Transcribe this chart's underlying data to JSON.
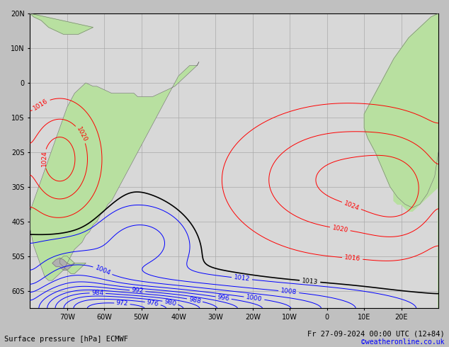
{
  "title_left": "Surface pressure [hPa] ECMWF",
  "title_right": "Fr 27-09-2024 00:00 UTC (12+84)",
  "copyright": "©weatheronline.co.uk",
  "ocean_color": "#d8d8d8",
  "land_color": "#b8e0a0",
  "land_border_color": "#707070",
  "grid_color": "#aaaaaa",
  "figsize": [
    6.34,
    4.9
  ],
  "dpi": 100,
  "xlim": [
    -80,
    30
  ],
  "ylim": [
    -65,
    20
  ],
  "xticks": [
    -70,
    -60,
    -50,
    -40,
    -30,
    -20,
    -10,
    0,
    10,
    20
  ],
  "yticks": [
    -60,
    -50,
    -40,
    -30,
    -20,
    -10,
    0,
    10,
    20
  ],
  "xtick_labels": [
    "70W",
    "60W",
    "50W",
    "40W",
    "30W",
    "20W",
    "10W",
    "0",
    "10E",
    "20E"
  ],
  "ytick_labels": [
    "60S",
    "50S",
    "40S",
    "30S",
    "20S",
    "10S",
    "0",
    "10N",
    "20N"
  ]
}
